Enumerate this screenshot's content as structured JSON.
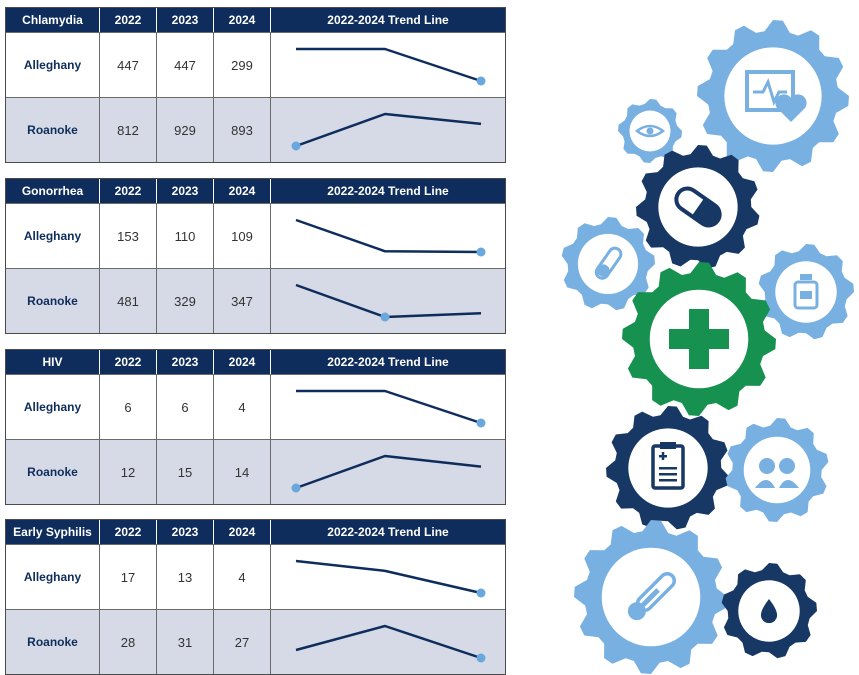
{
  "colors": {
    "header_bg": "#0f2d5c",
    "line": "#0f2d5c",
    "marker": "#6aa7dd",
    "alt_row": "#d6dae6",
    "gear_light": "#78b0e2",
    "gear_dark": "#173764",
    "gear_green": "#16914f"
  },
  "trend_header": "2022-2024 Trend Line",
  "years": [
    "2022",
    "2023",
    "2024"
  ],
  "chart_data": [
    {
      "type": "line",
      "title": "Chlamydia",
      "x": [
        "2022",
        "2023",
        "2024"
      ],
      "series": [
        {
          "name": "Alleghany",
          "values": [
            447,
            447,
            299
          ]
        },
        {
          "name": "Roanoke",
          "values": [
            812,
            929,
            893
          ]
        }
      ],
      "markers": [
        {
          "series": "Alleghany",
          "index": 2
        },
        {
          "series": "Roanoke",
          "index": 0
        }
      ]
    },
    {
      "type": "line",
      "title": "Gonorrhea",
      "x": [
        "2022",
        "2023",
        "2024"
      ],
      "series": [
        {
          "name": "Alleghany",
          "values": [
            153,
            110,
            109
          ]
        },
        {
          "name": "Roanoke",
          "values": [
            481,
            329,
            347
          ]
        }
      ],
      "markers": [
        {
          "series": "Alleghany",
          "index": 2
        },
        {
          "series": "Roanoke",
          "index": 1
        }
      ]
    },
    {
      "type": "line",
      "title": "HIV",
      "x": [
        "2022",
        "2023",
        "2024"
      ],
      "series": [
        {
          "name": "Alleghany",
          "values": [
            6,
            6,
            4
          ]
        },
        {
          "name": "Roanoke",
          "values": [
            12,
            15,
            14
          ]
        }
      ],
      "markers": [
        {
          "series": "Alleghany",
          "index": 2
        },
        {
          "series": "Roanoke",
          "index": 0
        }
      ]
    },
    {
      "type": "line",
      "title": "Early Syphilis",
      "x": [
        "2022",
        "2023",
        "2024"
      ],
      "series": [
        {
          "name": "Alleghany",
          "values": [
            17,
            13,
            4
          ]
        },
        {
          "name": "Roanoke",
          "values": [
            28,
            31,
            27
          ]
        }
      ],
      "markers": [
        {
          "series": "Alleghany",
          "index": 2
        },
        {
          "series": "Roanoke",
          "index": 2
        }
      ]
    }
  ],
  "gear_icons": [
    "monitor-heart-icon",
    "eye-icon",
    "pill-icon",
    "test-tube-icon",
    "medicine-bottle-icon",
    "medical-cross-icon",
    "clipboard-icon",
    "people-icon",
    "thermometer-icon",
    "blood-drop-icon"
  ]
}
